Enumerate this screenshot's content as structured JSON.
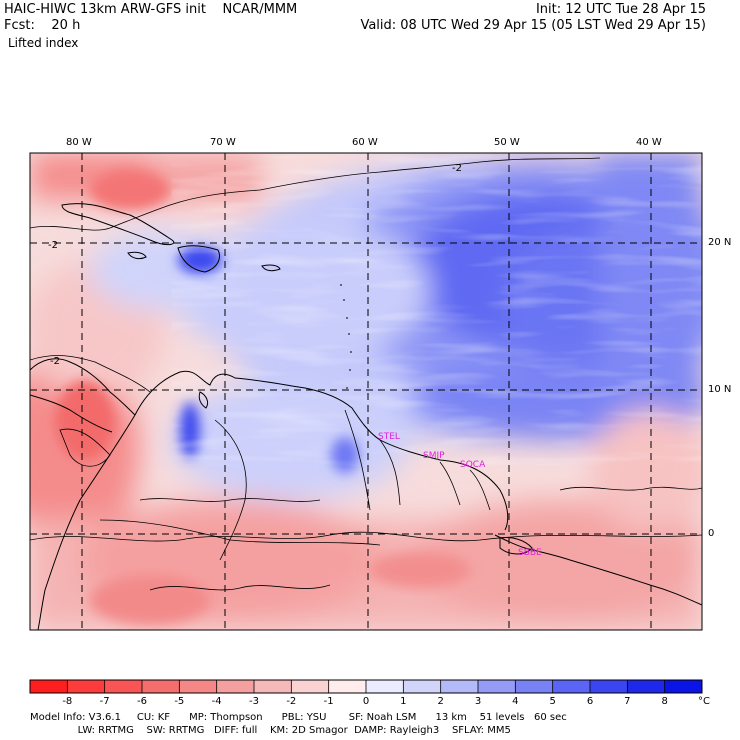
{
  "header": {
    "left_line1": "HAIC-HIWC 13km ARW-GFS init    NCAR/MMM",
    "left_line2": "Fcst:    20 h",
    "left_line3": "Lifted index",
    "right_line1": "Init: 12 UTC Tue 28 Apr 15",
    "right_line2": "Valid: 08 UTC Wed 29 Apr 15 (05 LST Wed 29 Apr 15)"
  },
  "map": {
    "lon_labels": [
      "80 W",
      "70 W",
      "60 W",
      "50 W",
      "40 W"
    ],
    "lat_labels": [
      "20 N",
      "10 N",
      "0"
    ],
    "contour_labels": [
      "-2",
      "-2",
      "-2",
      "-2"
    ],
    "site_labels": [
      "STEL",
      "SMJP",
      "SOCA",
      "SBBE"
    ],
    "colors": {
      "site_label": "#e020e0",
      "coast": "#000000",
      "grid": "#000000"
    },
    "field_pattern": "Broad positive lifted index (stable, blue) over the central Atlantic with a maximum near 15–20N 45–50W; negative values (unstable, red) over Central America, northern South America interior and the Caribbean northwest."
  },
  "colorbar": {
    "unit": "°C",
    "ticks": [
      "-8",
      "-7",
      "-6",
      "-5",
      "-4",
      "-3",
      "-2",
      "-1",
      "0",
      "1",
      "2",
      "3",
      "4",
      "5",
      "6",
      "7",
      "8"
    ],
    "colors": [
      "#ff1e1e",
      "#ff3c3c",
      "#fa5555",
      "#f56e6e",
      "#f58787",
      "#f5a0a0",
      "#f5b9b9",
      "#fad2d2",
      "#ffecec",
      "#ebecff",
      "#d2d5fa",
      "#b4b9fa",
      "#969bf5",
      "#7882f5",
      "#5a64f5",
      "#3c46f0",
      "#1e28eb",
      "#0a14e6"
    ]
  },
  "footer": {
    "line1": "Model Info: V3.6.1     CU: KF      MP: Thompson      PBL: YSU       SF: Noah LSM      13 km    51 levels   60 sec",
    "line2": "               LW: RRTMG    SW: RRTMG   DIFF: full    KM: 2D Smagor  DAMP: Rayleigh3    SFLAY: MM5"
  }
}
